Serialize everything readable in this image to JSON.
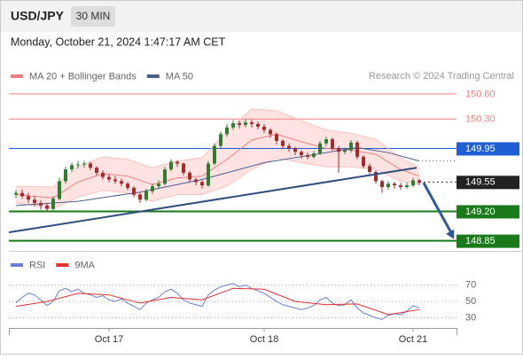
{
  "chart_data": [
    {
      "type": "candlestick",
      "title": "USD/JPY",
      "timeframe": "30 MIN",
      "subtitle": "Monday, October 21, 2024 1:47:17 AM CET",
      "source": "Research © 2024 Trading Central",
      "categories": [
        null,
        null,
        null,
        null,
        null,
        null,
        null,
        null,
        null,
        null,
        null,
        null,
        null,
        null,
        null,
        "Oct 17",
        null,
        null,
        null,
        null,
        null,
        null,
        null,
        null,
        null,
        null,
        null,
        null,
        null,
        null,
        null,
        null,
        null,
        null,
        null,
        null,
        null,
        null,
        null,
        null,
        "Oct 18",
        null,
        null,
        null,
        null,
        null,
        null,
        null,
        null,
        null,
        null,
        null,
        null,
        null,
        null,
        null,
        null,
        null,
        null,
        null,
        null,
        null,
        null,
        null,
        "Oct 21",
        null
      ],
      "candles": [
        [
          149.4,
          149.45,
          149.36,
          149.42
        ],
        [
          149.42,
          149.46,
          149.35,
          149.38
        ],
        [
          149.38,
          149.42,
          149.3,
          149.34
        ],
        [
          149.34,
          149.38,
          149.26,
          149.3
        ],
        [
          149.3,
          149.33,
          149.22,
          149.27
        ],
        [
          149.27,
          149.3,
          149.19,
          149.23
        ],
        [
          149.23,
          149.38,
          149.21,
          149.35
        ],
        [
          149.35,
          149.6,
          149.33,
          149.56
        ],
        [
          149.56,
          149.73,
          149.53,
          149.7
        ],
        [
          149.7,
          149.78,
          149.67,
          149.75
        ],
        [
          149.75,
          149.8,
          149.71,
          149.76
        ],
        [
          149.76,
          149.8,
          149.72,
          149.77
        ],
        [
          149.77,
          149.79,
          149.69,
          149.72
        ],
        [
          149.72,
          149.74,
          149.63,
          149.66
        ],
        [
          149.66,
          149.69,
          149.58,
          149.61
        ],
        [
          149.61,
          149.64,
          149.55,
          149.58
        ],
        [
          149.58,
          149.62,
          149.53,
          149.56
        ],
        [
          149.56,
          149.59,
          149.5,
          149.53
        ],
        [
          149.53,
          149.55,
          149.45,
          149.48
        ],
        [
          149.48,
          149.5,
          149.37,
          149.4
        ],
        [
          149.4,
          149.42,
          149.3,
          149.34
        ],
        [
          149.34,
          149.47,
          149.32,
          149.44
        ],
        [
          149.44,
          149.53,
          149.41,
          149.5
        ],
        [
          149.5,
          149.57,
          149.47,
          149.53
        ],
        [
          149.53,
          149.73,
          149.51,
          149.7
        ],
        [
          149.7,
          149.82,
          149.68,
          149.79
        ],
        [
          149.79,
          149.81,
          149.73,
          149.77
        ],
        [
          149.77,
          149.78,
          149.63,
          149.66
        ],
        [
          149.66,
          149.68,
          149.55,
          149.58
        ],
        [
          149.58,
          149.6,
          149.51,
          149.55
        ],
        [
          149.55,
          149.57,
          149.47,
          149.51
        ],
        [
          149.51,
          149.8,
          149.49,
          149.77
        ],
        [
          149.77,
          150.01,
          149.75,
          149.98
        ],
        [
          149.98,
          150.15,
          149.95,
          150.12
        ],
        [
          150.12,
          150.24,
          150.09,
          150.2
        ],
        [
          150.2,
          150.29,
          150.17,
          150.25
        ],
        [
          150.25,
          150.28,
          150.19,
          150.23
        ],
        [
          150.23,
          150.3,
          150.2,
          150.26
        ],
        [
          150.26,
          150.29,
          150.2,
          150.24
        ],
        [
          150.24,
          150.27,
          150.18,
          150.21
        ],
        [
          150.21,
          150.24,
          150.13,
          150.17
        ],
        [
          150.17,
          150.19,
          150.08,
          150.12
        ],
        [
          150.12,
          150.14,
          150.0,
          150.04
        ],
        [
          150.04,
          150.06,
          149.94,
          149.98
        ],
        [
          149.98,
          150.01,
          149.91,
          149.95
        ],
        [
          149.95,
          149.97,
          149.87,
          149.91
        ],
        [
          149.91,
          149.93,
          149.83,
          149.87
        ],
        [
          149.87,
          149.9,
          149.82,
          149.85
        ],
        [
          149.85,
          149.92,
          149.83,
          149.89
        ],
        [
          149.89,
          150.04,
          149.87,
          150.01
        ],
        [
          150.01,
          150.09,
          149.98,
          150.06
        ],
        [
          150.06,
          150.08,
          149.92,
          149.95
        ],
        [
          149.95,
          149.98,
          149.66,
          149.91
        ],
        [
          149.91,
          149.96,
          149.88,
          149.93
        ],
        [
          149.93,
          150.05,
          149.9,
          150.02
        ],
        [
          150.02,
          150.04,
          149.82,
          149.85
        ],
        [
          149.85,
          149.87,
          149.71,
          149.74
        ],
        [
          149.74,
          149.77,
          149.64,
          149.67
        ],
        [
          149.67,
          149.69,
          149.53,
          149.56
        ],
        [
          149.56,
          149.58,
          149.42,
          149.49
        ],
        [
          149.49,
          149.56,
          149.46,
          149.53
        ],
        [
          149.53,
          149.55,
          149.47,
          149.51
        ],
        [
          149.51,
          149.54,
          149.46,
          149.49
        ],
        [
          149.49,
          149.54,
          149.47,
          149.51
        ],
        [
          149.51,
          149.6,
          149.49,
          149.57
        ],
        [
          149.57,
          149.59,
          149.51,
          149.54
        ]
      ],
      "up_color": "#2e7d32",
      "down_color": "#a52a2a",
      "series": [
        {
          "name": "MA 20 + Bollinger Bands",
          "color": "#f08080",
          "band_color": "#ffd6d6",
          "x": [
            0,
            6,
            10,
            14,
            18,
            22,
            26,
            30,
            34,
            38,
            42,
            46,
            50,
            54,
            58,
            62,
            65
          ],
          "values": [
            149.4,
            149.36,
            149.55,
            149.65,
            149.62,
            149.52,
            149.6,
            149.62,
            149.82,
            150.05,
            150.12,
            150.03,
            149.95,
            149.93,
            149.88,
            149.7,
            149.62
          ],
          "upper": [
            149.5,
            149.49,
            149.73,
            149.85,
            149.82,
            149.72,
            149.8,
            149.84,
            150.15,
            150.42,
            150.4,
            150.28,
            150.17,
            150.13,
            150.06,
            149.84,
            149.72
          ],
          "lower": [
            149.3,
            149.23,
            149.37,
            149.45,
            149.42,
            149.32,
            149.4,
            149.4,
            149.5,
            149.7,
            149.84,
            149.78,
            149.73,
            149.73,
            149.7,
            149.56,
            149.52
          ]
        },
        {
          "name": "MA 50",
          "color": "#4a5f8f",
          "x": [
            0,
            10,
            20,
            30,
            40,
            50,
            55,
            60,
            65
          ],
          "values": [
            149.27,
            149.32,
            149.43,
            149.58,
            149.78,
            149.9,
            149.96,
            149.9,
            149.8
          ]
        }
      ],
      "levels": [
        {
          "value": 150.6,
          "label": "150.60",
          "color": "#f08080",
          "line": "solid"
        },
        {
          "value": 150.3,
          "label": "150.30",
          "color": "#f08080",
          "line": "solid"
        },
        {
          "value": 149.95,
          "label": "149.95",
          "color": "#1f5fd6",
          "line": "solid",
          "label_background": "#1f5fd6"
        },
        {
          "value": 149.55,
          "label": "149.55",
          "color": "#333333",
          "line": "dotted",
          "label_background": "#222222"
        },
        {
          "value": 149.2,
          "label": "149.20",
          "color": "#1a7a1a",
          "line": "thick",
          "label_background": "#1a7a1a"
        },
        {
          "value": 148.85,
          "label": "148.85",
          "color": "#1a7a1a",
          "line": "thick",
          "label_background": "#1a7a1a"
        }
      ],
      "trendline": {
        "color": "#2f4f7f",
        "x": [
          -1.14,
          64.57
        ],
        "values": [
          148.95,
          149.72
        ]
      },
      "forecast_arrow": {
        "color": "#2f5a9a",
        "x": [
          65.7,
          70.6
        ],
        "values": [
          149.54,
          148.87
        ]
      },
      "ylim": [
        148.73,
        151.0
      ]
    },
    {
      "type": "line",
      "series": [
        {
          "name": "RSI",
          "color": "#6b7fd7",
          "values": [
            48,
            55,
            60,
            58,
            52,
            45,
            50,
            63,
            66,
            62,
            65,
            60,
            58,
            55,
            57,
            52,
            50,
            53,
            48,
            44,
            40,
            48,
            52,
            55,
            62,
            65,
            60,
            52,
            48,
            46,
            44,
            58,
            64,
            68,
            70,
            72,
            68,
            70,
            66,
            63,
            60,
            55,
            50,
            46,
            44,
            42,
            40,
            42,
            45,
            52,
            55,
            48,
            45,
            46,
            52,
            42,
            36,
            33,
            30,
            28,
            33,
            35,
            34,
            38,
            45,
            42
          ]
        },
        {
          "name": "9MA",
          "color": "#e03030",
          "x": [
            0,
            5,
            10,
            15,
            20,
            25,
            30,
            35,
            40,
            45,
            50,
            55,
            60,
            65
          ],
          "values": [
            44,
            50,
            60,
            58,
            48,
            55,
            52,
            66,
            65,
            50,
            46,
            47,
            34,
            40
          ]
        }
      ],
      "ylim": [
        23,
        88
      ],
      "yticks": [
        30,
        50,
        70
      ],
      "grid": true
    }
  ]
}
